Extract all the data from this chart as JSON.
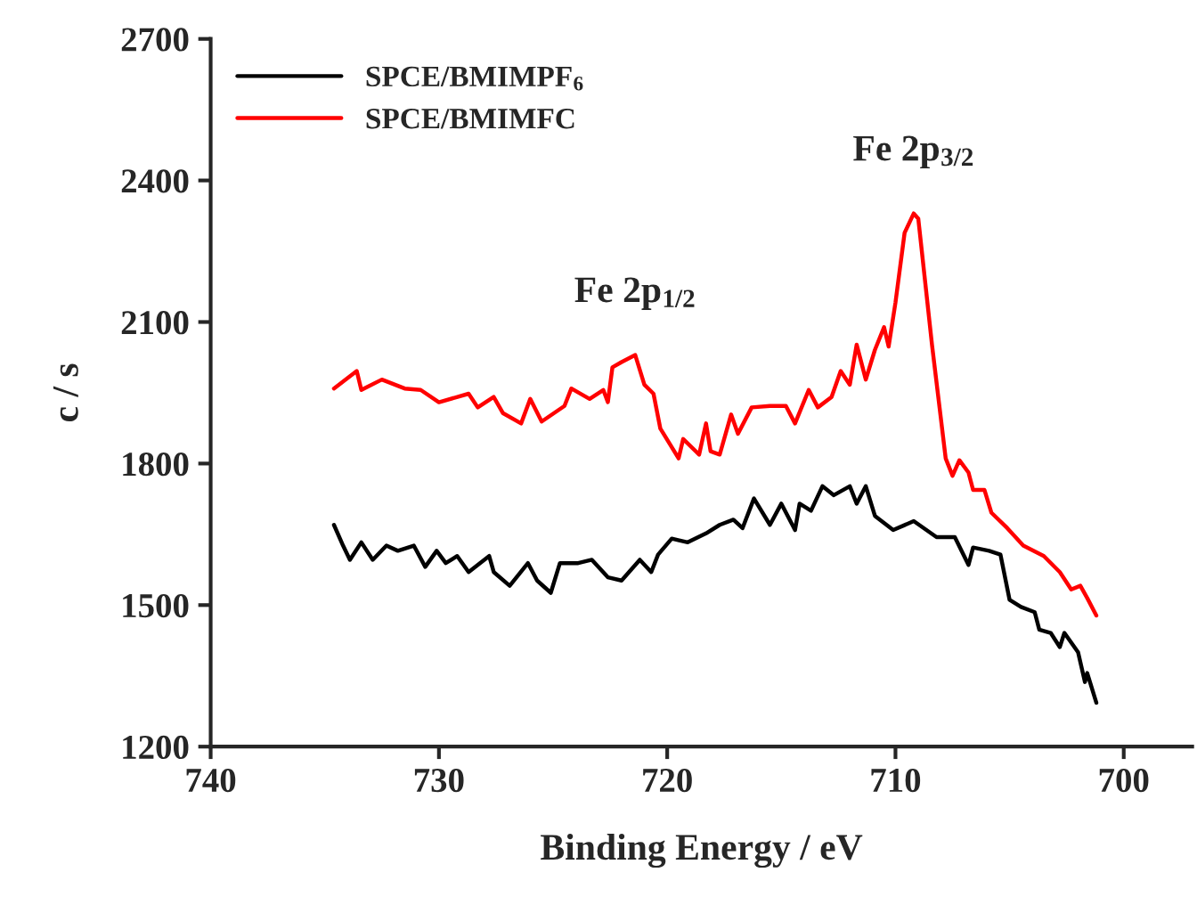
{
  "chart_data": {
    "type": "line",
    "xlabel": "Binding Energy / eV",
    "ylabel": "c / s",
    "xlim": [
      740,
      697
    ],
    "xticks": [
      740,
      730,
      720,
      710,
      700
    ],
    "ylim": [
      1200,
      2700
    ],
    "yticks": [
      1200,
      1500,
      1800,
      2100,
      2400,
      2700
    ],
    "grid": false,
    "legend": "top left",
    "marker": "none",
    "line_style": "solid",
    "annotations": [
      {
        "text": "Fe 2p$_{1/2}$",
        "x": 721.4,
        "y": 2030
      },
      {
        "text": "Fe 2p$_{3/2}$",
        "x": 709.2,
        "y": 2330
      }
    ],
    "series": [
      {
        "name": "SPCE/BMIMPF$_{6}$",
        "color": "#000000",
        "x": [
          734.6,
          734.2,
          733.9,
          733.4,
          732.9,
          732.3,
          731.8,
          731.1,
          730.6,
          730.1,
          729.7,
          729.2,
          728.7,
          727.8,
          727.6,
          726.9,
          726.1,
          725.7,
          725.1,
          724.7,
          723.9,
          723.3,
          722.6,
          722.0,
          721.2,
          720.7,
          720.4,
          719.8,
          719.1,
          718.3,
          717.7,
          717.1,
          716.7,
          716.2,
          715.5,
          715.0,
          714.4,
          714.2,
          713.7,
          713.2,
          712.7,
          712.0,
          711.7,
          711.3,
          710.9,
          710.1,
          709.2,
          708.2,
          707.4,
          706.8,
          706.6,
          705.9,
          705.4,
          705.0,
          704.5,
          703.9,
          703.7,
          703.2,
          702.8,
          702.6,
          702.0,
          701.7,
          701.6,
          701.2
        ],
        "values": [
          1670,
          1626,
          1596,
          1633,
          1596,
          1626,
          1615,
          1626,
          1581,
          1615,
          1589,
          1604,
          1570,
          1604,
          1570,
          1541,
          1589,
          1552,
          1526,
          1589,
          1589,
          1596,
          1559,
          1552,
          1596,
          1570,
          1607,
          1641,
          1633,
          1652,
          1670,
          1681,
          1663,
          1726,
          1670,
          1715,
          1659,
          1715,
          1700,
          1752,
          1733,
          1752,
          1715,
          1752,
          1689,
          1659,
          1678,
          1644,
          1644,
          1585,
          1622,
          1615,
          1607,
          1511,
          1496,
          1485,
          1448,
          1441,
          1411,
          1441,
          1400,
          1337,
          1356,
          1293
        ]
      },
      {
        "name": "SPCE/BMIMFC",
        "color": "#ff0000",
        "x": [
          734.6,
          733.6,
          733.4,
          732.5,
          731.5,
          730.8,
          730.0,
          728.7,
          728.3,
          727.6,
          727.2,
          726.4,
          726.0,
          725.5,
          724.5,
          724.2,
          723.4,
          722.8,
          722.6,
          722.4,
          722.0,
          721.4,
          721.0,
          720.6,
          720.3,
          719.5,
          719.3,
          718.6,
          718.3,
          718.1,
          717.7,
          717.2,
          716.9,
          716.3,
          715.5,
          714.8,
          714.4,
          713.8,
          713.4,
          712.8,
          712.4,
          712.0,
          711.7,
          711.3,
          710.9,
          710.5,
          710.3,
          710.0,
          709.6,
          709.2,
          709.0,
          708.4,
          707.8,
          707.5,
          707.2,
          706.8,
          706.6,
          706.1,
          705.8,
          705.1,
          704.4,
          703.5,
          702.8,
          702.3,
          701.9,
          701.6,
          701.2
        ],
        "values": [
          1959,
          1996,
          1956,
          1978,
          1959,
          1956,
          1930,
          1948,
          1919,
          1941,
          1907,
          1885,
          1937,
          1889,
          1922,
          1959,
          1937,
          1956,
          1930,
          2004,
          2015,
          2030,
          1967,
          1948,
          1874,
          1811,
          1852,
          1819,
          1885,
          1826,
          1819,
          1904,
          1863,
          1919,
          1922,
          1922,
          1885,
          1956,
          1919,
          1941,
          1996,
          1967,
          2052,
          1978,
          2041,
          2089,
          2048,
          2141,
          2289,
          2330,
          2319,
          2052,
          1811,
          1774,
          1807,
          1781,
          1744,
          1744,
          1696,
          1663,
          1626,
          1604,
          1570,
          1533,
          1541,
          1515,
          1478
        ]
      }
    ]
  }
}
